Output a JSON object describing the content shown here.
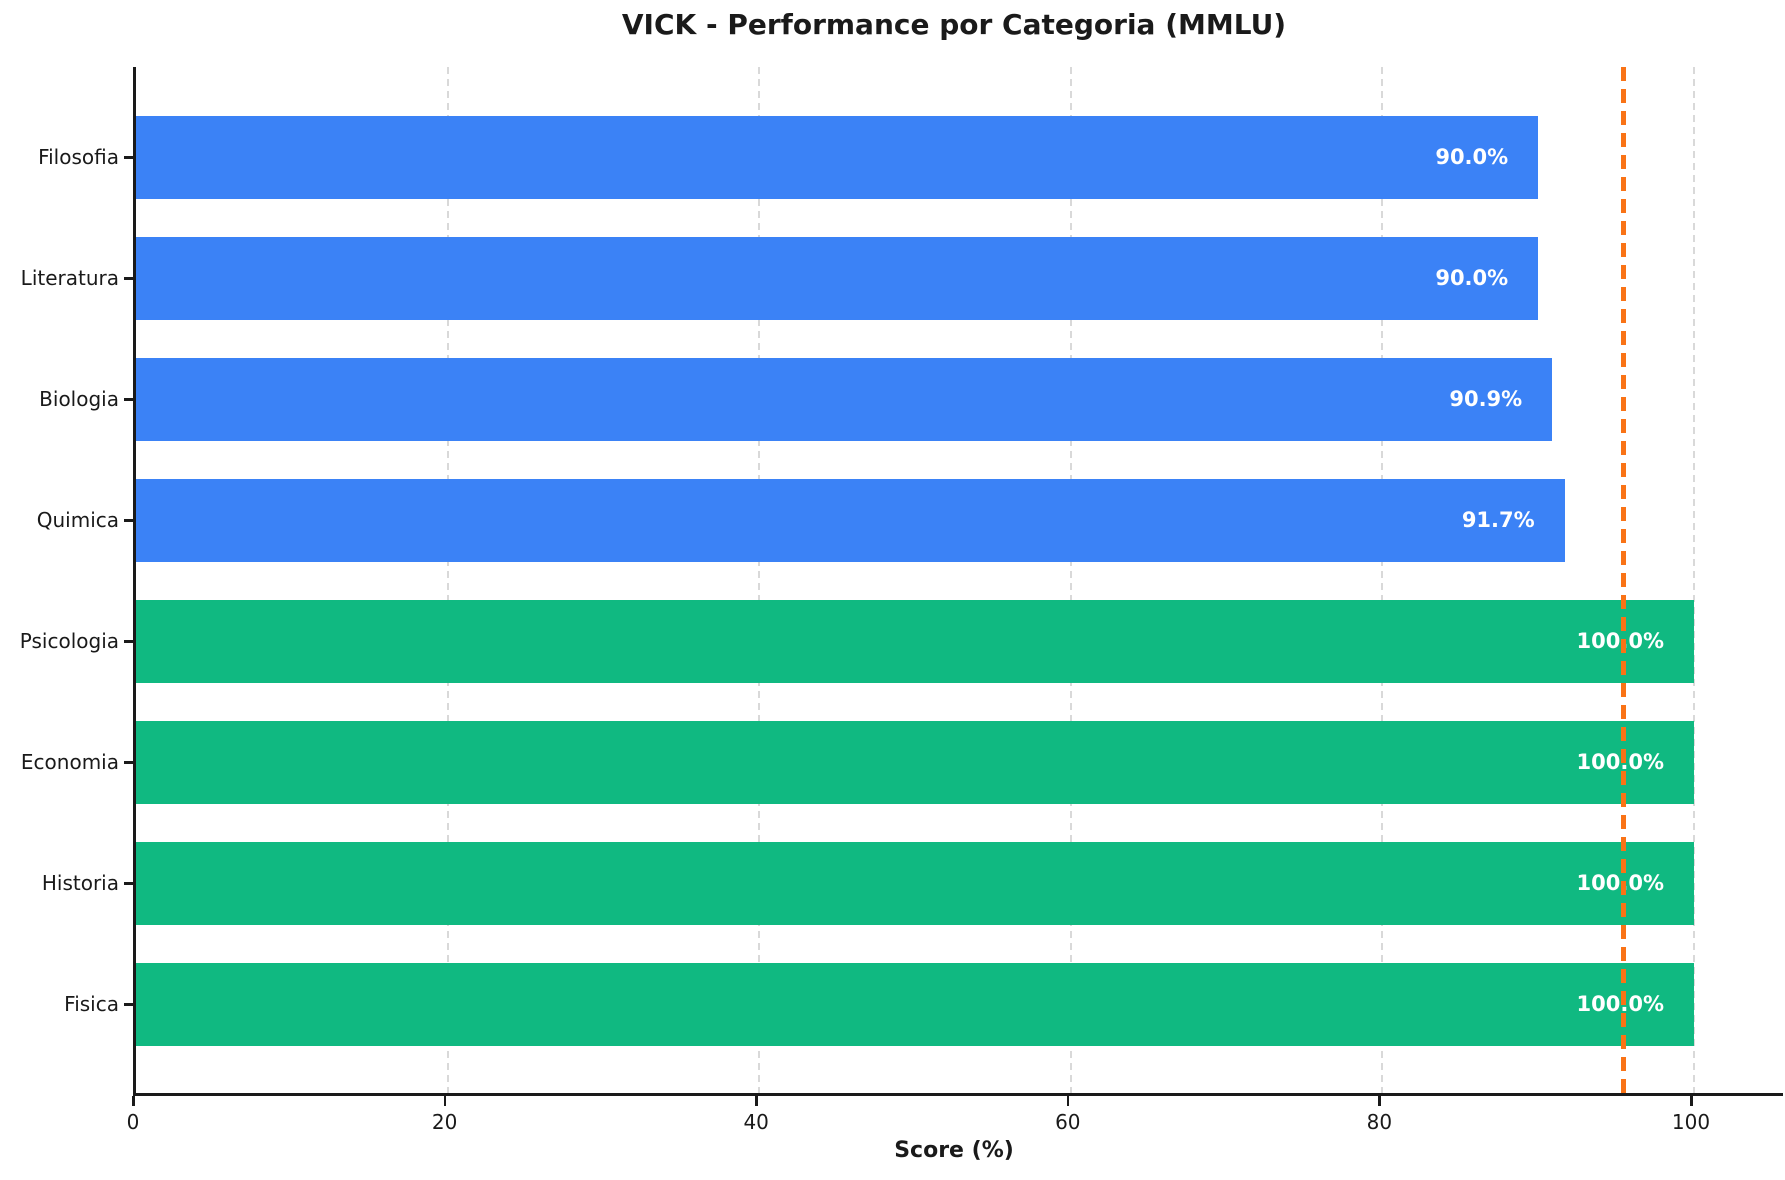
{
  "chart_data": {
    "type": "bar",
    "orientation": "horizontal",
    "title": "VICK - Performance por Categoria (MMLU)",
    "xlabel": "Score (%)",
    "categories": [
      "Filosofia",
      "Literatura",
      "Biologia",
      "Quimica",
      "Psicologia",
      "Economia",
      "Historia",
      "Fisica"
    ],
    "values": [
      90.0,
      90.0,
      90.9,
      91.7,
      100.0,
      100.0,
      100.0,
      100.0
    ],
    "value_labels": [
      "90.0%",
      "90.0%",
      "90.9%",
      "91.7%",
      "100.0%",
      "100.0%",
      "100.0%",
      "100.0%"
    ],
    "bar_colors": [
      "#3b82f6",
      "#3b82f6",
      "#3b82f6",
      "#3b82f6",
      "#10b981",
      "#10b981",
      "#10b981",
      "#10b981"
    ],
    "xticks": [
      0,
      20,
      40,
      60,
      80,
      100
    ],
    "xlim": [
      0,
      106
    ],
    "grid": "vertical dashed",
    "legend": "none",
    "threshold_line": {
      "value": 95,
      "color": "#f97316",
      "style": "dashed"
    },
    "colors": {
      "bar_low": "#3b82f6",
      "bar_high": "#10b981",
      "threshold": "#f97316",
      "grid": "#d9d9d9",
      "axis": "#1a1a1a",
      "value_text": "#ffffff"
    }
  }
}
